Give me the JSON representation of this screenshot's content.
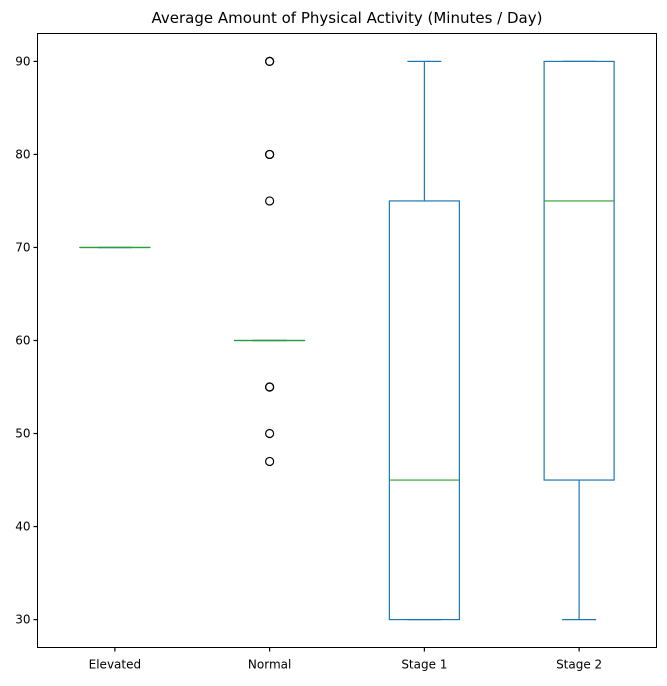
{
  "chart_data": {
    "type": "box",
    "title": "Average Amount of Physical Activity (Minutes / Day)",
    "xlabel": "",
    "ylabel": "",
    "categories": [
      "Elevated",
      "Normal",
      "Stage 1",
      "Stage 2"
    ],
    "ylim": [
      27,
      93
    ],
    "yticks": [
      30,
      40,
      50,
      60,
      70,
      80,
      90
    ],
    "grid": false,
    "colors": {
      "box": "#1f77b4",
      "median": "#2ca02c",
      "flier": "#000000"
    },
    "boxes": [
      {
        "category": "Elevated",
        "whisker_low": 70,
        "q1": 70,
        "median": 70,
        "q3": 70,
        "whisker_high": 70,
        "fliers": []
      },
      {
        "category": "Normal",
        "whisker_low": 60,
        "q1": 60,
        "median": 60,
        "q3": 60,
        "whisker_high": 60,
        "fliers": [
          47,
          50,
          55,
          55,
          75,
          80,
          80,
          90,
          90
        ]
      },
      {
        "category": "Stage 1",
        "whisker_low": 30,
        "q1": 30,
        "median": 45,
        "q3": 75,
        "whisker_high": 90,
        "fliers": []
      },
      {
        "category": "Stage 2",
        "whisker_low": 30,
        "q1": 45,
        "median": 75,
        "q3": 90,
        "whisker_high": 90,
        "fliers": []
      }
    ]
  }
}
